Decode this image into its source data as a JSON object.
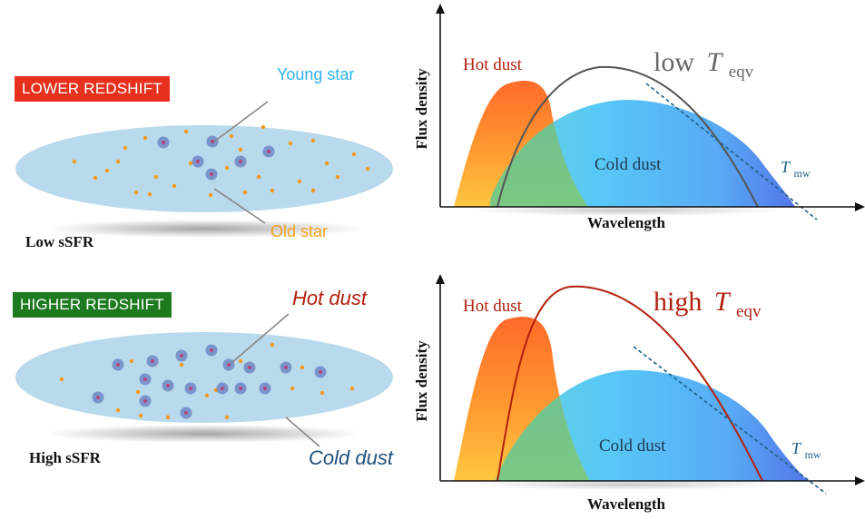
{
  "top_panel": {
    "tag": "LOWER REDSHIFT",
    "tag_color": "#e8311c",
    "young_star": "Young star",
    "old_star": "Old star",
    "ssfr": "Low sSFR"
  },
  "bottom_panel": {
    "tag": "HIGHER REDSHIFT",
    "tag_color": "#1e7a1e",
    "hot_dust": "Hot dust",
    "cold_dust": "Cold dust",
    "ssfr": "High sSFR"
  },
  "top_chart": {
    "hot_dust": "Hot dust",
    "cold_dust": "Cold dust",
    "teqv_prefix": "low",
    "teqv_symbol": "T",
    "teqv_sub": "eqv",
    "tmw_symbol": "T",
    "tmw_sub": "mw",
    "ylabel": "Flux density",
    "xlabel": "Wavelength",
    "curve_color": "#555555"
  },
  "bottom_chart": {
    "hot_dust": "Hot dust",
    "cold_dust": "Cold dust",
    "teqv_prefix": "high",
    "teqv_symbol": "T",
    "teqv_sub": "eqv",
    "tmw_symbol": "T",
    "tmw_sub": "mw",
    "ylabel": "Flux density",
    "xlabel": "Wavelength",
    "curve_color": "#b3200e"
  },
  "colors": {
    "galaxy": "#b9d9ec",
    "young_star": "#6f86c4",
    "young_core": "#c0366b",
    "old_star": "#f39a1c",
    "young_label": "#2fb3ea",
    "old_label": "#f4a21d",
    "hot_dust_label": "#b3200e",
    "cold_dust_label": "#1f4f7a"
  }
}
